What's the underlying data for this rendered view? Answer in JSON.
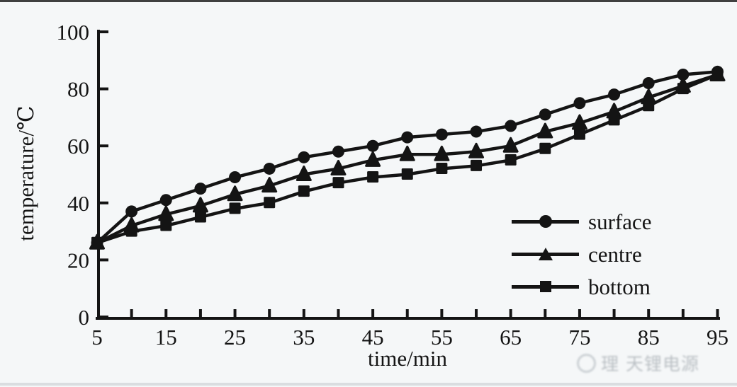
{
  "colors": {
    "background": "#f5f7f8",
    "ink": "#141414",
    "top_bar": "#404040",
    "bottom_bar": "#dadde0",
    "watermark": "#8b939a"
  },
  "chart_data": {
    "type": "line",
    "title": "",
    "grid": false,
    "x": [
      5,
      10,
      15,
      20,
      25,
      30,
      35,
      40,
      45,
      50,
      55,
      60,
      65,
      70,
      75,
      80,
      85,
      90,
      95
    ],
    "x_axis": {
      "title": "time/min",
      "min": 5,
      "max": 95,
      "tick_values": [
        10,
        15,
        20,
        25,
        30,
        35,
        40,
        45,
        50,
        55,
        60,
        65,
        70,
        75,
        80,
        85,
        90,
        95
      ],
      "label_values": [
        5,
        15,
        25,
        35,
        45,
        55,
        65,
        75,
        85,
        95
      ]
    },
    "y_axis": {
      "title": "temperature/℃",
      "min": 0,
      "max": 100,
      "tick_values": [
        0,
        20,
        40,
        60,
        80,
        100
      ]
    },
    "series": [
      {
        "name": "surface",
        "marker": "circle",
        "values": [
          26,
          37,
          41,
          45,
          49,
          52,
          56,
          58,
          60,
          63,
          64,
          65,
          67,
          71,
          75,
          78,
          82,
          85,
          86
        ]
      },
      {
        "name": "centre",
        "marker": "triangle",
        "values": [
          26,
          32,
          36,
          39,
          43,
          46,
          50,
          52,
          55,
          57,
          57,
          58,
          60,
          65,
          68,
          72,
          77,
          81,
          85
        ]
      },
      {
        "name": "bottom",
        "marker": "square",
        "values": [
          26,
          30,
          32,
          35,
          38,
          40,
          44,
          47,
          49,
          50,
          52,
          53,
          55,
          59,
          64,
          69,
          74,
          80,
          85
        ]
      }
    ],
    "legend": {
      "position": "inside-bottom-right",
      "entries": [
        "surface",
        "centre",
        "bottom"
      ]
    }
  },
  "watermark": {
    "logo": "circle-logo",
    "text": "理 天锂电源"
  }
}
